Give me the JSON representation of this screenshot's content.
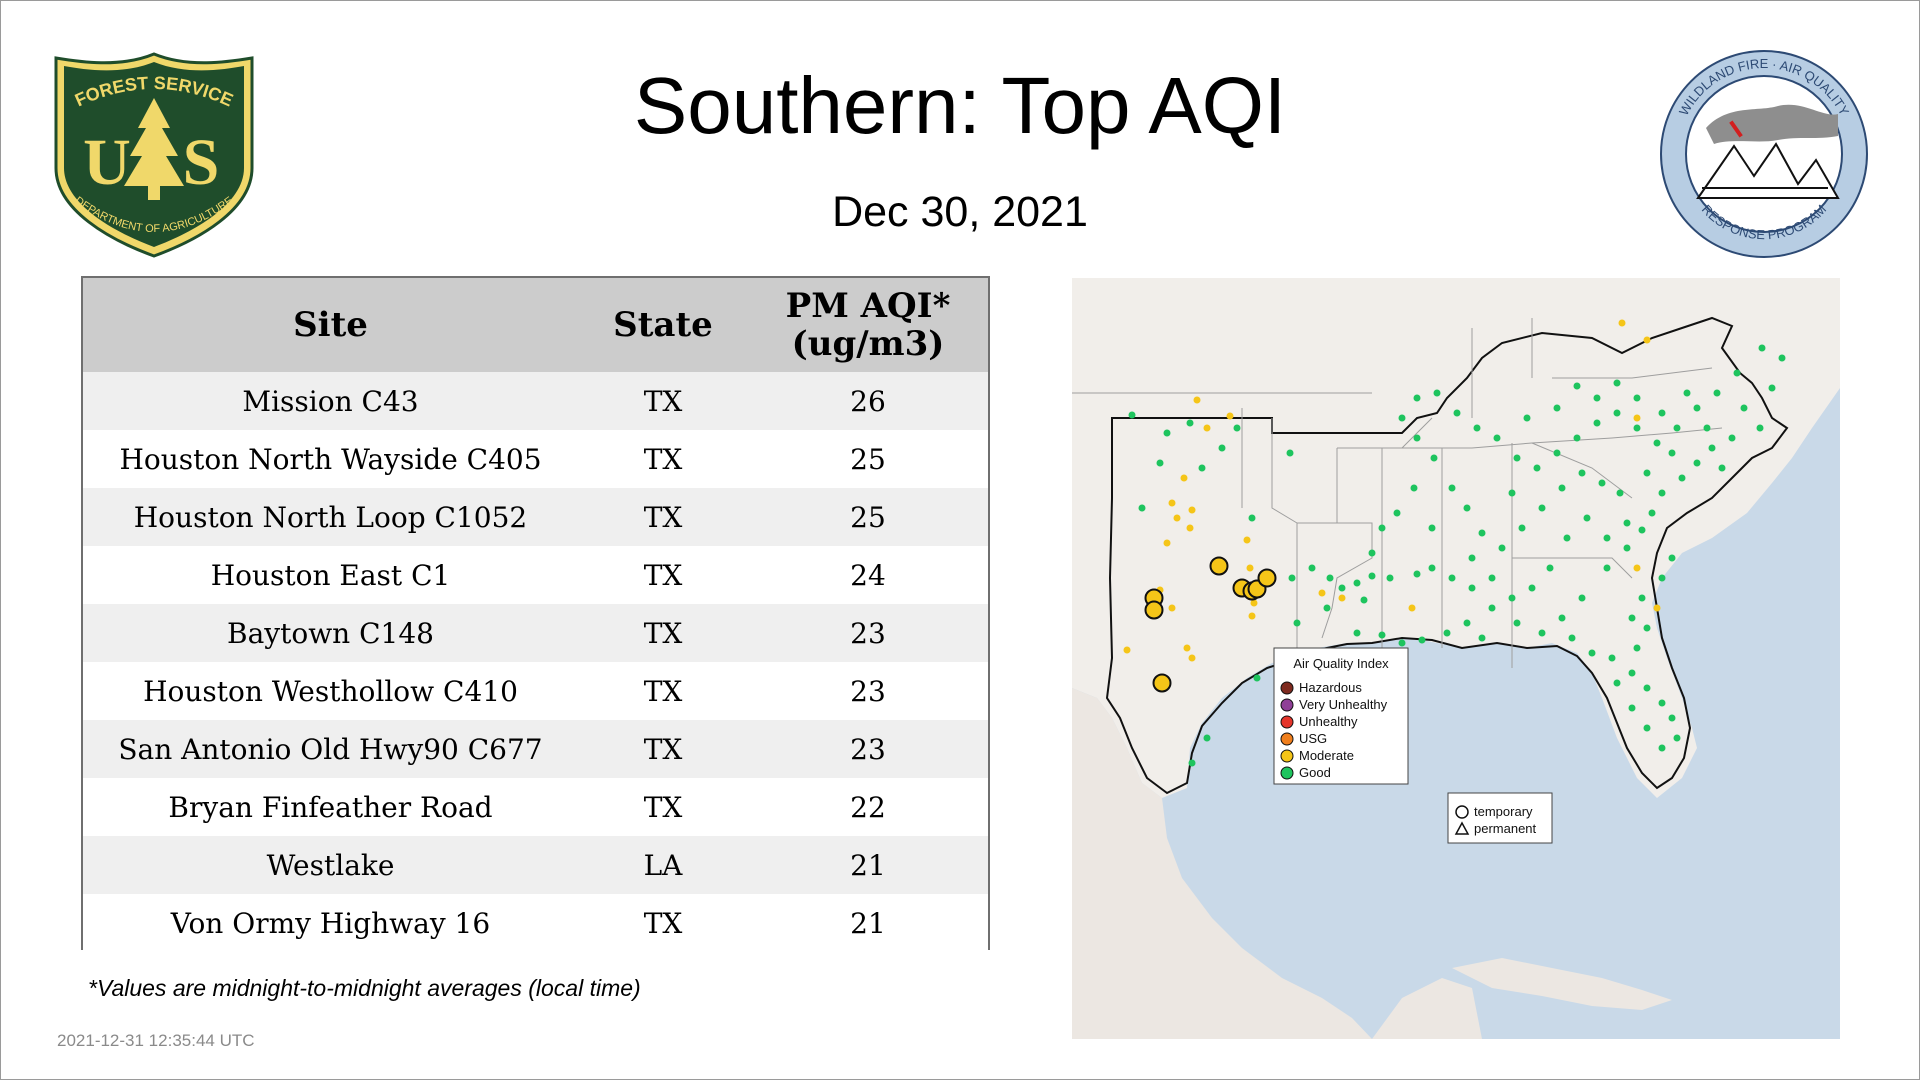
{
  "header": {
    "title": "Southern: Top AQI",
    "date": "Dec 30, 2021"
  },
  "logos": {
    "forest_service": {
      "top_text": "FOREST SERVICE",
      "letters_left": "U",
      "letters_right": "S",
      "bottom_text": "DEPARTMENT OF AGRICULTURE"
    },
    "wildland_fire": {
      "top_text": "WILDLAND FIRE · AIR QUALITY",
      "bottom_text": "RESPONSE PROGRAM"
    }
  },
  "table": {
    "headers": {
      "site": "Site",
      "state": "State",
      "aqi_line1": "PM AQI*",
      "aqi_line2": "(ug/m3)"
    },
    "rows": [
      {
        "site": "Mission C43",
        "state": "TX",
        "aqi": "26"
      },
      {
        "site": "Houston North Wayside C405",
        "state": "TX",
        "aqi": "25"
      },
      {
        "site": "Houston North Loop C1052",
        "state": "TX",
        "aqi": "25"
      },
      {
        "site": "Houston East C1",
        "state": "TX",
        "aqi": "24"
      },
      {
        "site": "Baytown C148",
        "state": "TX",
        "aqi": "23"
      },
      {
        "site": "Houston Westhollow C410",
        "state": "TX",
        "aqi": "23"
      },
      {
        "site": "San Antonio Old Hwy90 C677",
        "state": "TX",
        "aqi": "23"
      },
      {
        "site": "Bryan Finfeather Road",
        "state": "TX",
        "aqi": "22"
      },
      {
        "site": "Westlake",
        "state": "LA",
        "aqi": "21"
      },
      {
        "site": "Von Ormy Highway 16",
        "state": "TX",
        "aqi": "21"
      }
    ]
  },
  "footnote": "*Values are midnight-to-midnight averages (local time)",
  "timestamp": "2021-12-31 12:35:44 UTC",
  "map": {
    "legend": {
      "title": "Air Quality Index",
      "items": [
        {
          "label": "Hazardous",
          "color": "#7e2a1f"
        },
        {
          "label": "Very Unhealthy",
          "color": "#8f3f97"
        },
        {
          "label": "Unhealthy",
          "color": "#e5352b"
        },
        {
          "label": "USG",
          "color": "#f07f1d"
        },
        {
          "label": "Moderate",
          "color": "#f5c518"
        },
        {
          "label": "Good",
          "color": "#1ec45e"
        }
      ]
    },
    "type_legend": {
      "temporary": "temporary",
      "permanent": "permanent"
    }
  },
  "colors": {
    "fs_green": "#1f4d2b",
    "fs_gold": "#f0d86a",
    "table_header_bg": "#cccccc",
    "row_alt_bg": "#efefef",
    "water": "#c9d9e8",
    "land": "#f1eeea",
    "good": "#1ec45e",
    "moderate": "#f5c518"
  }
}
